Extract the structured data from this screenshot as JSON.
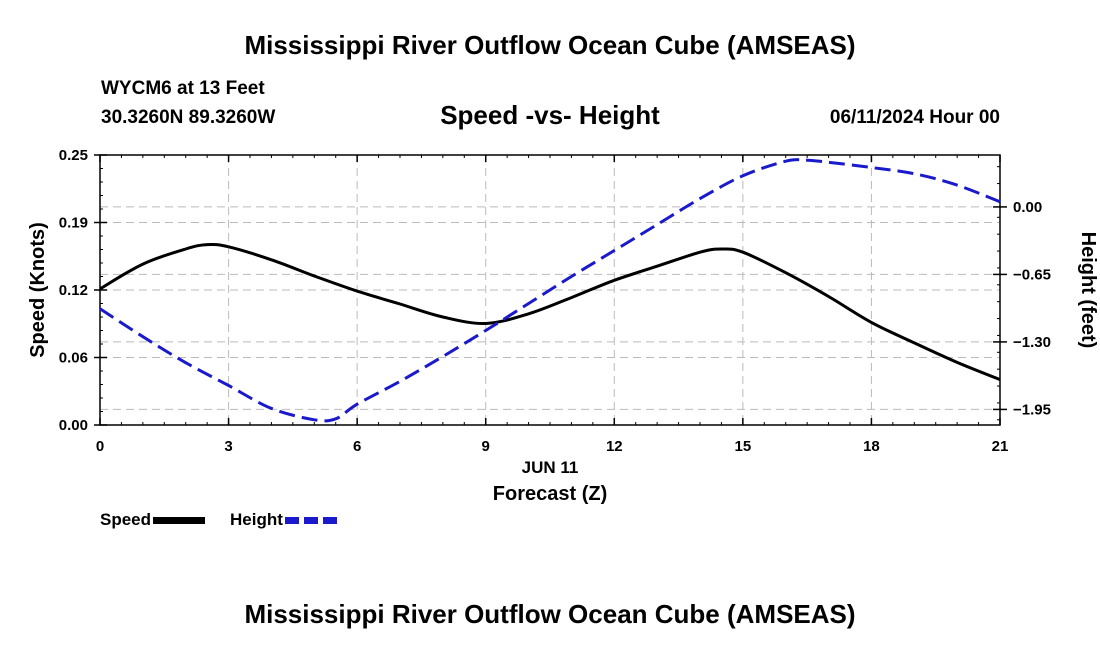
{
  "header": {
    "title": "Mississippi River Outflow Ocean Cube (AMSEAS)",
    "station": "WYCM6 at 13 Feet",
    "coords": "30.3260N  89.3260W",
    "subtitle": "Speed -vs- Height",
    "datetime": "06/11/2024 Hour 00"
  },
  "footer": {
    "title": "Mississippi River Outflow Ocean Cube (AMSEAS)"
  },
  "legend": {
    "speed": "Speed",
    "height": "Height"
  },
  "chart_data": {
    "type": "line",
    "title": "Speed -vs- Height",
    "xlabel": "Forecast (Z)",
    "xlabel_date": "JUN 11",
    "ylabel": "Speed (Knots)",
    "y2label": "Height (feet)",
    "xlim": [
      0,
      21
    ],
    "ylim": [
      0.0,
      0.25
    ],
    "y2lim": [
      -2.1,
      0.5
    ],
    "xticks": [
      0,
      3,
      6,
      9,
      12,
      15,
      18,
      21
    ],
    "xtick_labels": [
      "0",
      "3",
      "6",
      "9",
      "12",
      "15",
      "18",
      "21"
    ],
    "yticks": [
      0.0,
      0.0625,
      0.125,
      0.1875,
      0.25
    ],
    "ytick_labels": [
      "0.00",
      "0.06",
      "0.12",
      "0.19",
      "0.25"
    ],
    "y2ticks": [
      0.0,
      -0.65,
      -1.3,
      -1.95
    ],
    "y2tick_labels": [
      "0.00",
      "−0.65",
      "−1.30",
      "−1.95"
    ],
    "grid": true,
    "series": [
      {
        "name": "Speed",
        "axis": "left",
        "color": "#000000",
        "style": "solid",
        "x": [
          0,
          1,
          2,
          2.5,
          3,
          4,
          5,
          6,
          7,
          8,
          9,
          10,
          11,
          12,
          13,
          14,
          14.5,
          15,
          16,
          17,
          18,
          19,
          20,
          21
        ],
        "y": [
          0.126,
          0.149,
          0.163,
          0.167,
          0.165,
          0.153,
          0.138,
          0.124,
          0.112,
          0.1,
          0.094,
          0.103,
          0.118,
          0.134,
          0.147,
          0.16,
          0.163,
          0.16,
          0.141,
          0.119,
          0.095,
          0.076,
          0.058,
          0.042
        ]
      },
      {
        "name": "Height",
        "axis": "right",
        "color": "#1a1acc",
        "style": "dashed",
        "x": [
          0,
          1,
          2,
          3,
          4,
          5,
          5.5,
          6,
          7,
          8,
          9,
          10,
          11,
          12,
          13,
          14,
          15,
          16,
          16.5,
          17,
          18,
          19,
          20,
          21
        ],
        "y": [
          -0.98,
          -1.25,
          -1.5,
          -1.72,
          -1.94,
          -2.05,
          -2.04,
          -1.9,
          -1.68,
          -1.44,
          -1.19,
          -0.93,
          -0.67,
          -0.42,
          -0.17,
          0.08,
          0.3,
          0.44,
          0.45,
          0.43,
          0.38,
          0.32,
          0.21,
          0.05
        ]
      }
    ]
  }
}
